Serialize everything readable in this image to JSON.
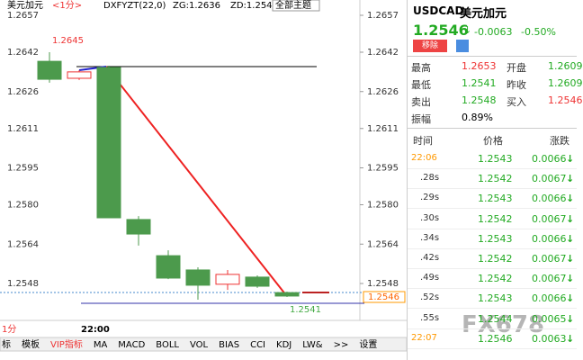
{
  "toolbar": {
    "symbol": "美元加元",
    "period": "<1分>",
    "indicator": "DXFYZT(22,0)",
    "zg": "ZG:1.2636",
    "zd": "ZD:1.254",
    "theme": "全部主题"
  },
  "chart": {
    "yticks": [
      1.2657,
      1.2642,
      1.2626,
      1.2611,
      1.2595,
      {
        "value": 1.258,
        "label": "1.2580"
      },
      1.2564,
      1.2548
    ],
    "candles": [
      {
        "open": 1.26383,
        "high": 1.2642,
        "low": 1.26296,
        "close": 1.2631
      },
      {
        "open": 1.26314,
        "high": 1.26347,
        "low": 1.26307,
        "close": 1.2634
      },
      {
        "open": 1.26358,
        "high": 1.26365,
        "low": 1.25747,
        "close": 1.25747
      },
      {
        "open": 1.2574,
        "high": 1.25754,
        "low": 1.25634,
        "close": 1.25681
      },
      {
        "open": 1.25593,
        "high": 1.25615,
        "low": 1.25498,
        "close": 1.25502
      },
      {
        "open": 1.25535,
        "high": 1.25546,
        "low": 1.25414,
        "close": 1.25473
      },
      {
        "open": 1.25477,
        "high": 1.25535,
        "low": 1.25454,
        "close": 1.25517
      },
      {
        "open": 1.25506,
        "high": 1.25513,
        "low": 1.25462,
        "close": 1.25469
      },
      {
        "open": 1.25443,
        "high": 1.25447,
        "low": 1.25425,
        "close": 1.25429
      }
    ],
    "high_label": "1.2645",
    "low_label": "1.2541",
    "last_label": "1.2546",
    "period": "1分",
    "time": "22:00"
  },
  "tabs": [
    "标",
    "模板",
    "VIP指标",
    "MA",
    "MACD",
    "BOLL",
    "VOL",
    "BIAS",
    "CCI",
    "KDJ",
    "LW&",
    ">>",
    "设置"
  ],
  "quote": {
    "code": "USDCAD",
    "name": "美元加元",
    "price": "1.2546",
    "change": "-0.0063",
    "pct": "-0.50%",
    "remove": "移除",
    "stats": [
      [
        "最高",
        "1.2653",
        "开盘",
        "1.2609"
      ],
      [
        "最低",
        "1.2541",
        "昨收",
        "1.2609"
      ],
      [
        "卖出",
        "1.2548",
        "买入",
        "1.2546"
      ],
      [
        "振幅",
        "0.89%"
      ]
    ],
    "header": [
      "时间",
      "价格",
      "涨跌"
    ],
    "ticks": [
      [
        "22:06",
        "1.2543",
        "0.0066"
      ],
      [
        ".28s",
        "1.2542",
        "0.0067"
      ],
      [
        ".29s",
        "1.2543",
        "0.0066"
      ],
      [
        ".30s",
        "1.2542",
        "0.0067"
      ],
      [
        ".34s",
        "1.2543",
        "0.0066"
      ],
      [
        ".42s",
        "1.2542",
        "0.0067"
      ],
      [
        ".49s",
        "1.2542",
        "0.0067"
      ],
      [
        ".52s",
        "1.2543",
        "0.0066"
      ],
      [
        ".55s",
        "1.2544",
        "0.0065"
      ],
      [
        "22:07",
        "1.2546",
        "0.0063"
      ]
    ]
  },
  "watermark": "FX678"
}
